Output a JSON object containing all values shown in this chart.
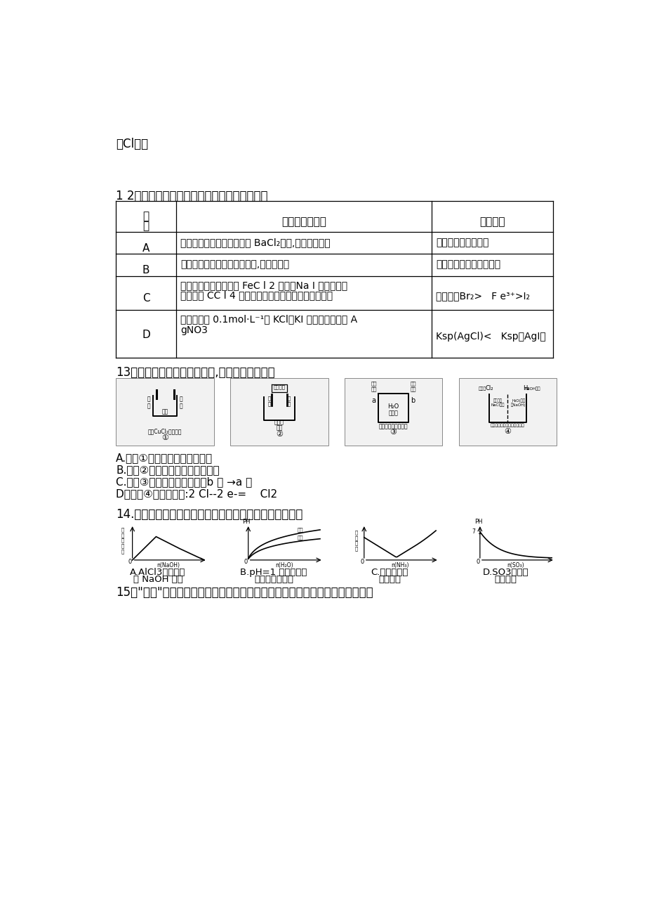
{
  "bg_color": "#ffffff",
  "top_label": "（Cl-）",
  "q12_title": "1 2．下列实验操作及现象与实验结论一致的是",
  "q13_title": "13．观测下列几种装置示意图,有关论述对的的是",
  "q13_options": [
    "A.装置①中阳极上析出红色固体",
    "B.装置②中铜片应与电源负极相连",
    "C.装置③中外电路电流方向：b 极 →a 极",
    "D．装置④中阴极反映:2 Cl--2 e-=    Cl2"
  ],
  "q14_title": "14.下列实验过程中产生的现象与图中曲线变化相相应的是",
  "q14_captions": [
    "A.AlCl3溶液中滴\n入 NaOH 溶液",
    "B.pH=1 的醋酸和盐\n酸分别加水稀释",
    "C.氨气通入醋\n酸溶液中",
    "D.SO3气体通\n入溴水中"
  ],
  "q15_title": "15．\"类推\"的思维方式在化学学习与研究中常常采用。下列类推思维中对的的是"
}
